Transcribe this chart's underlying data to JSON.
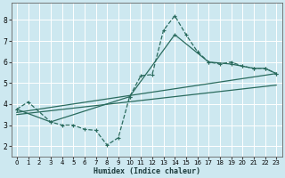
{
  "xlabel": "Humidex (Indice chaleur)",
  "xlim": [
    -0.5,
    23.5
  ],
  "ylim": [
    1.5,
    8.8
  ],
  "yticks": [
    2,
    3,
    4,
    5,
    6,
    7,
    8
  ],
  "xticks": [
    0,
    1,
    2,
    3,
    4,
    5,
    6,
    7,
    8,
    9,
    10,
    11,
    12,
    13,
    14,
    15,
    16,
    17,
    18,
    19,
    20,
    21,
    22,
    23
  ],
  "bg_color": "#cde8f0",
  "grid_color": "#ffffff",
  "line_color": "#2a6b5e",
  "line1_x": [
    0,
    1,
    3,
    4,
    5,
    6,
    7,
    8,
    9,
    10,
    11,
    12,
    13,
    14,
    15,
    16,
    17,
    18,
    19,
    20,
    21,
    22,
    23
  ],
  "line1_y": [
    3.75,
    4.1,
    3.15,
    3.0,
    3.0,
    2.8,
    2.75,
    2.05,
    2.4,
    4.35,
    5.35,
    5.4,
    7.5,
    8.2,
    7.3,
    6.5,
    6.0,
    5.9,
    6.0,
    5.8,
    5.7,
    5.7,
    5.45
  ],
  "line2_x": [
    0,
    3,
    10,
    14,
    17,
    19,
    20,
    21,
    22,
    23
  ],
  "line2_y": [
    3.75,
    3.15,
    4.35,
    7.3,
    6.0,
    5.9,
    5.8,
    5.7,
    5.7,
    5.45
  ],
  "line3_x": [
    0,
    23
  ],
  "line3_y": [
    3.6,
    5.45
  ],
  "line4_x": [
    0,
    23
  ],
  "line4_y": [
    3.5,
    4.9
  ]
}
